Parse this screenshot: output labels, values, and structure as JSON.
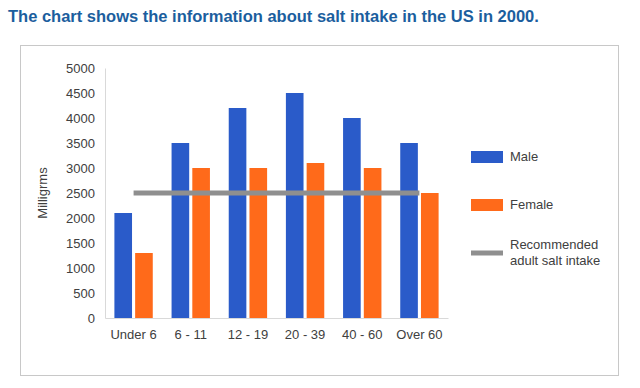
{
  "chart_data": {
    "type": "bar",
    "title": "The chart shows the information about salt intake in the US in 2000.",
    "y_label": "Milligrms",
    "categories": [
      "Under 6",
      "6 - 11",
      "12 - 19",
      "20 - 39",
      "40 - 60",
      "Over 60"
    ],
    "series": [
      {
        "name": "Male",
        "color": "#2a5bc9",
        "type": "bar",
        "values": [
          2100,
          3500,
          4200,
          4500,
          4000,
          3500
        ]
      },
      {
        "name": "Female",
        "color": "#ff6a1a",
        "type": "bar",
        "values": [
          1300,
          3000,
          3000,
          3100,
          3000,
          2500
        ]
      },
      {
        "name": "Recommended adult salt intake",
        "color": "#8f8f8f",
        "type": "line",
        "values": [
          2500,
          2500,
          2500,
          2500,
          2500,
          2500
        ]
      }
    ],
    "ylim": [
      0,
      5000
    ],
    "yticks": [
      0,
      500,
      1000,
      1500,
      2000,
      2500,
      3000,
      3500,
      4000,
      4500,
      5000
    ],
    "grid": false,
    "legend": "right"
  }
}
